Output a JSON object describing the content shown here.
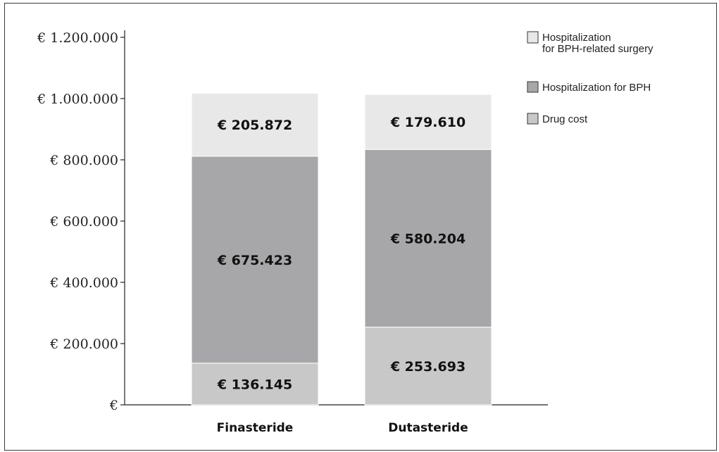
{
  "chart_data": {
    "type": "bar",
    "stacked": true,
    "categories": [
      "Finasteride",
      "Dutasteride"
    ],
    "series": [
      {
        "name": "Drug cost",
        "values": [
          136145,
          253693
        ],
        "value_labels": [
          "€ 136.145",
          "€ 253.693"
        ],
        "color": "#c8c8c8"
      },
      {
        "name": "Hospitalization for BPH",
        "values": [
          675423,
          580204
        ],
        "value_labels": [
          "€ 675.423",
          "€ 580.204"
        ],
        "color": "#a7a7a9"
      },
      {
        "name": "Hospitalization for BPH-related surgery",
        "legend_lines": [
          "Hospitalization",
          "for BPH-related surgery"
        ],
        "values": [
          205872,
          179610
        ],
        "value_labels": [
          "€ 205.872",
          "€ 179.610"
        ],
        "color": "#e8e8e9"
      }
    ],
    "ylim": [
      0,
      1200000
    ],
    "yticks": [
      0,
      200000,
      400000,
      600000,
      800000,
      1000000,
      1200000
    ],
    "ytick_labels": [
      "€",
      "€ 200.000",
      "€ 400.000",
      "€ 600.000",
      "€ 800.000",
      "€ 1.000.000",
      "€ 1.200.000"
    ],
    "title": "",
    "xlabel": "",
    "ylabel": "",
    "grid": false,
    "legend_position": "top-right",
    "legend_order": [
      "Hospitalization for BPH-related surgery",
      "Hospitalization for BPH",
      "Drug cost"
    ]
  }
}
